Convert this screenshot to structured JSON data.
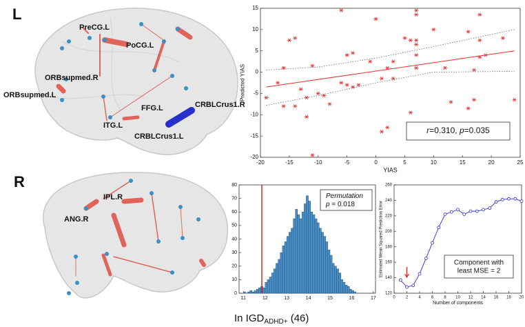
{
  "panel_labels": [
    "L",
    "R"
  ],
  "brain_left_labels": [
    "PreCG.L",
    "PoCG.L",
    "ORBsupmed.R",
    "ORBsupmed.L",
    "FFG.L",
    "ITG.L",
    "CRBLCrus1.R",
    "CRBLCrus1.L"
  ],
  "brain_right_labels": [
    "IPL.R",
    "ANG.R"
  ],
  "caption": {
    "prefix": "In IGD",
    "sub": "ADHD+",
    "suffix": " (46)"
  },
  "chart_data": [
    {
      "type": "scatter",
      "x_label": "YIAS",
      "y_label": "Predicted YIAS",
      "color": "#e8312f",
      "x": [
        -19,
        -17,
        -16,
        -16,
        -15,
        -14,
        -14,
        -13,
        -12,
        -12,
        -11,
        -11,
        -10,
        -9,
        -8,
        -6,
        -6,
        -5,
        -5,
        -4,
        -4,
        -3,
        -1,
        0,
        1,
        1,
        2,
        2,
        3,
        3,
        5,
        6,
        6,
        7,
        7,
        7,
        7,
        7,
        7,
        10,
        12,
        13,
        16,
        16,
        17,
        17,
        18,
        18,
        18,
        19,
        22,
        24
      ],
      "values": [
        -6,
        -2.5,
        -8,
        1,
        7.5,
        8,
        -8,
        -4,
        -10.5,
        -6,
        1.5,
        -19.5,
        -5,
        -5.5,
        -7.5,
        14.5,
        -2.5,
        4,
        -3,
        4.5,
        -3.5,
        -3,
        2.5,
        12.5,
        -1.5,
        -14,
        -13,
        1,
        2.5,
        -1.5,
        8,
        7.5,
        -9.5,
        14.5,
        13.5,
        7.5,
        6.5,
        4,
        1,
        10,
        1,
        -7,
        -8.5,
        9.5,
        0.5,
        -6.5,
        13.5,
        7.5,
        3.5,
        4,
        8,
        -6.5
      ],
      "fit": {
        "x": [
          -19,
          24
        ],
        "values": [
          -3.5,
          5
        ]
      },
      "ci_upper": {
        "x": [
          -19,
          -10,
          0,
          10,
          24
        ],
        "values": [
          0.5,
          1.2,
          3.3,
          6,
          10
        ]
      },
      "ci_lower": {
        "x": [
          -19,
          -10,
          0,
          10,
          24
        ],
        "values": [
          -7.8,
          -5.5,
          -2.5,
          0,
          0.2
        ]
      },
      "annotation": [
        {
          "text": "r",
          "italic": true
        },
        {
          "text": "=0.310, ",
          "italic": false
        },
        {
          "text": "p",
          "italic": true
        },
        {
          "text": "=0.035",
          "italic": false
        }
      ],
      "xlim": [
        -20,
        25
      ],
      "xticks": [
        -20,
        -15,
        -10,
        -5,
        0,
        5,
        10,
        15,
        20,
        25
      ],
      "ylim": [
        -20,
        15
      ],
      "yticks": [
        -20,
        -15,
        -10,
        -5,
        0,
        5,
        10,
        15
      ]
    },
    {
      "type": "histogram",
      "color": "#4a90c8",
      "marker_color": "#e02020",
      "marker_x": 11.85,
      "bins": [
        11.0,
        11.1,
        11.2,
        11.3,
        11.4,
        11.5,
        11.6,
        11.7,
        11.8,
        11.9,
        12.0,
        12.1,
        12.2,
        12.3,
        12.4,
        12.5,
        12.6,
        12.7,
        12.8,
        12.9,
        13.0,
        13.1,
        13.2,
        13.3,
        13.4,
        13.5,
        13.6,
        13.7,
        13.8,
        13.9,
        14.0,
        14.1,
        14.2,
        14.3,
        14.4,
        14.5,
        14.6,
        14.7,
        14.8,
        14.9,
        15.0,
        15.1,
        15.2,
        15.3,
        15.4,
        15.5,
        15.6,
        15.7,
        15.8,
        15.9,
        16.0,
        16.1,
        16.2
      ],
      "counts": [
        1,
        0,
        1,
        2,
        1,
        2,
        3,
        4,
        5,
        4,
        8,
        10,
        12,
        15,
        18,
        22,
        25,
        30,
        35,
        38,
        42,
        45,
        48,
        55,
        62,
        58,
        55,
        60,
        66,
        72,
        68,
        60,
        58,
        55,
        52,
        48,
        45,
        42,
        38,
        32,
        28,
        22,
        20,
        18,
        15,
        10,
        8,
        6,
        5,
        3,
        2,
        1
      ],
      "annotation": [
        [
          {
            "text": "Permutation",
            "italic": true
          }
        ],
        [
          {
            "text": "p",
            "italic": true
          },
          {
            "text": " = 0.018",
            "italic": false
          }
        ]
      ],
      "xlim": [
        10.8,
        17.1
      ],
      "xticks": [
        11,
        12,
        13,
        14,
        15,
        16,
        17
      ],
      "ylim": [
        0,
        80
      ],
      "yticks": [
        0,
        10,
        20,
        30,
        40,
        50,
        60,
        70,
        80
      ]
    },
    {
      "type": "line",
      "x_label": "Number of components",
      "y_label": "Estimated Mean Squared Prediction Error",
      "color": "#2b2bd6",
      "arrow_x": 2,
      "arrow_color": "#e02020",
      "x": [
        1,
        2,
        3,
        4,
        5,
        6,
        7,
        8,
        9,
        10,
        11,
        12,
        13,
        14,
        15,
        16,
        17,
        18,
        19,
        20
      ],
      "values": [
        137,
        128,
        130,
        145,
        165,
        185,
        205,
        222,
        225,
        228,
        222,
        226,
        226,
        228,
        230,
        238,
        241,
        242,
        242,
        239
      ],
      "annotation": [
        "Component with",
        "least MSE = 2"
      ],
      "xlim": [
        0,
        20
      ],
      "xticks": [
        0,
        2,
        4,
        6,
        8,
        10,
        12,
        14,
        16,
        18,
        20
      ],
      "ylim": [
        120,
        260
      ],
      "yticks": [
        120,
        140,
        160,
        180,
        200,
        220,
        240,
        260
      ]
    }
  ]
}
